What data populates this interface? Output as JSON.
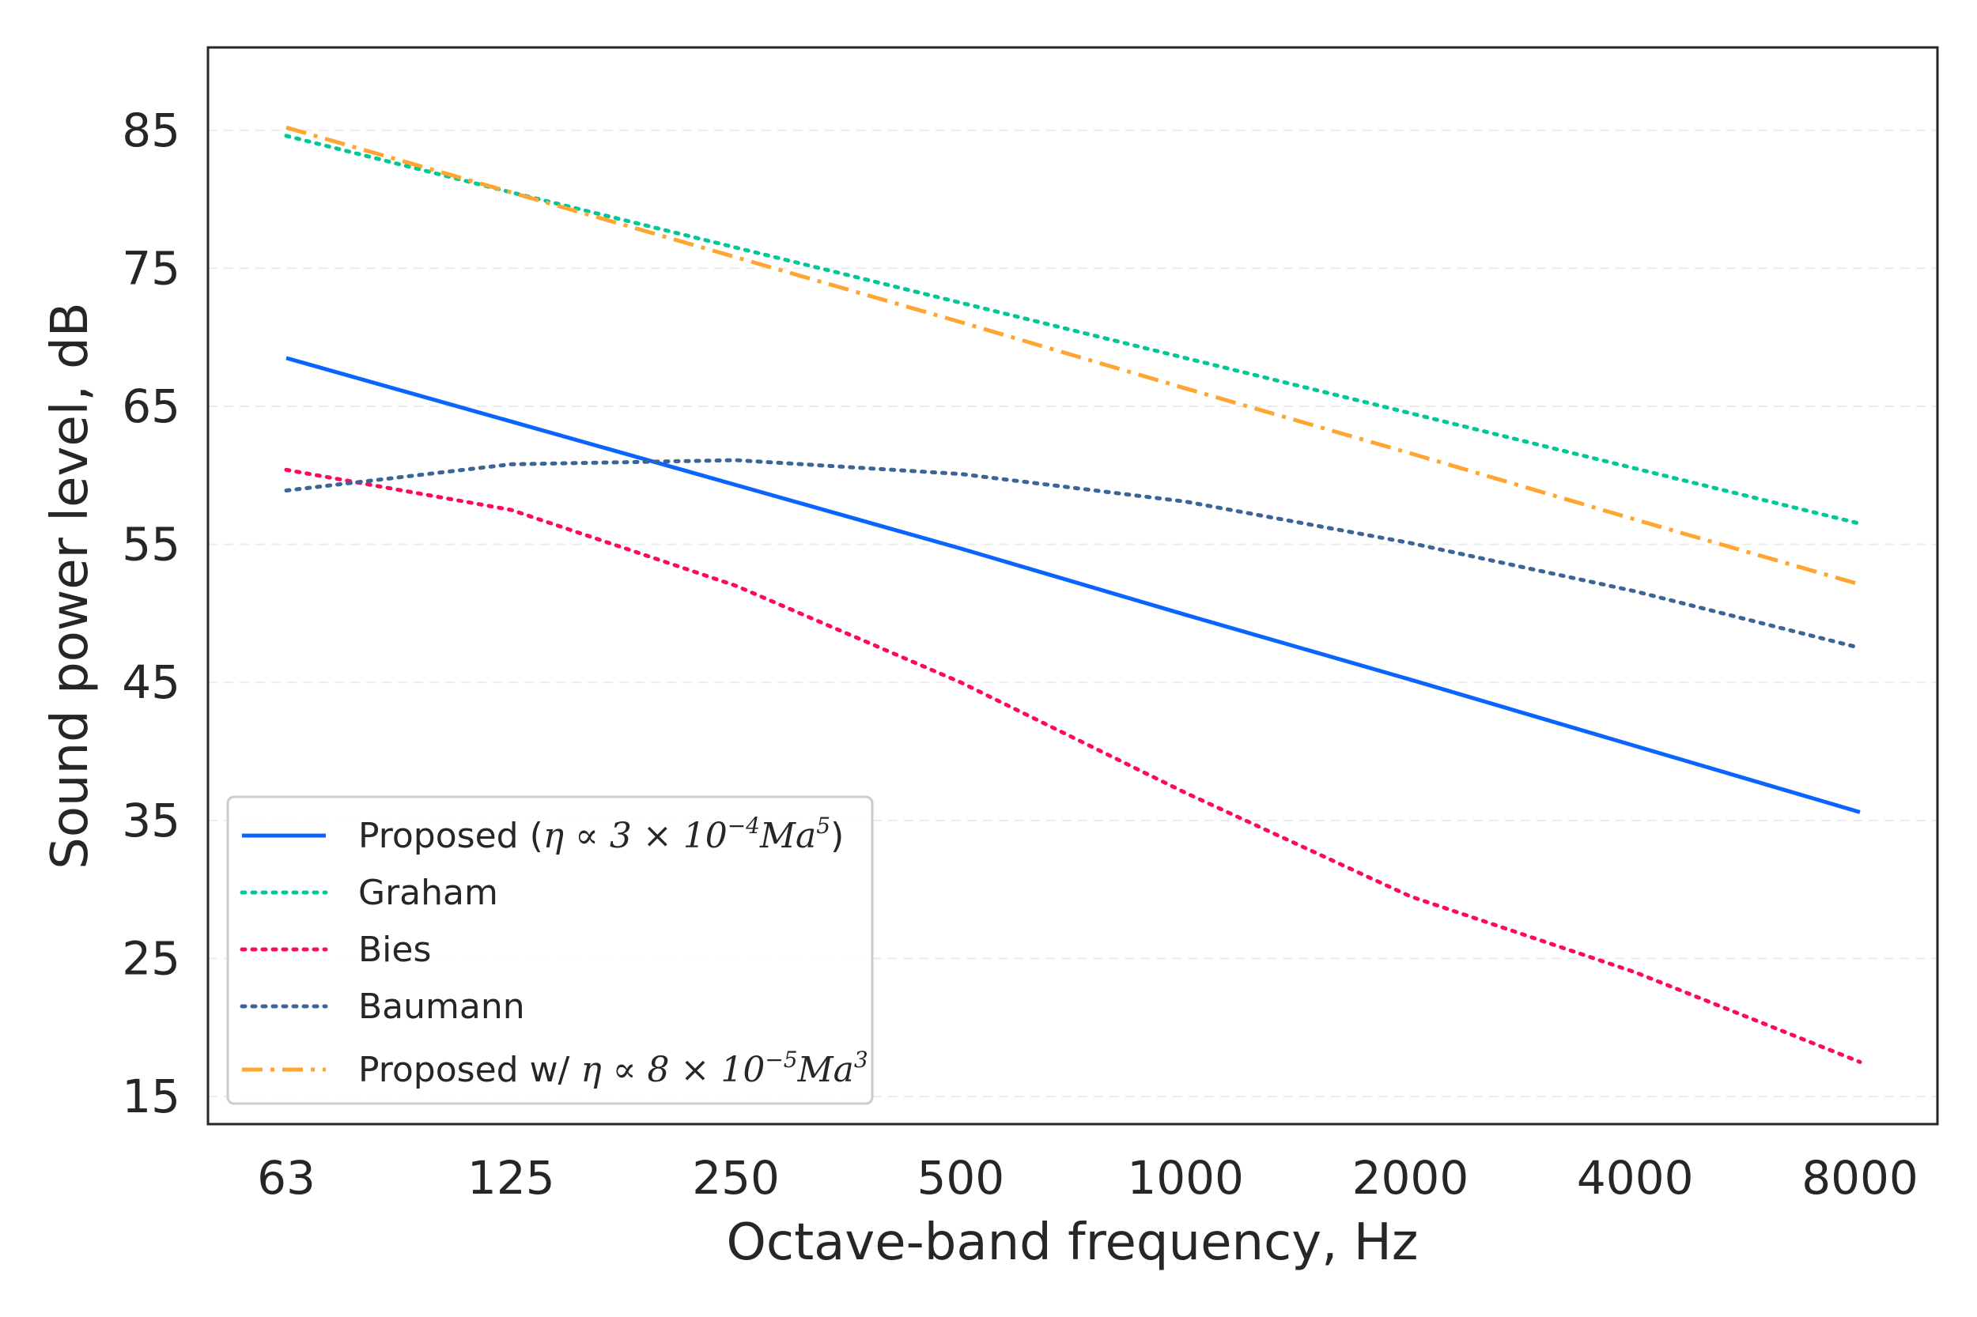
{
  "chart_data": {
    "type": "line",
    "title": "",
    "xlabel": "Octave-band frequency, Hz",
    "ylabel": "Sound power level, dB",
    "categories": [
      "63",
      "125",
      "250",
      "500",
      "1000",
      "2000",
      "4000",
      "8000"
    ],
    "yticks": [
      "15",
      "25",
      "35",
      "45",
      "55",
      "65",
      "75",
      "85"
    ],
    "ylim": [
      13,
      91
    ],
    "grid": "horizontal dashed",
    "legend_position": "lower-left",
    "series": [
      {
        "name": "Proposed",
        "legend_parts": {
          "prefix": "Proposed (",
          "eta": "η",
          "prop": " ∝ 3 × 10",
          "exp": "−4",
          "ma": "Ma",
          "maexp": "5",
          "suffix": ")"
        },
        "color": "#0a64ff",
        "style": "solid",
        "values": [
          68.5,
          63.9,
          59.3,
          54.7,
          49.9,
          45.2,
          40.4,
          35.6
        ]
      },
      {
        "name": "Graham",
        "color": "#00c896",
        "style": "dotted",
        "values": [
          84.6,
          80.5,
          76.5,
          72.5,
          68.5,
          64.5,
          60.5,
          56.5
        ]
      },
      {
        "name": "Bies",
        "color": "#ff0a5a",
        "style": "dotted",
        "values": [
          60.4,
          57.5,
          52.0,
          45.0,
          37.0,
          29.5,
          24.0,
          17.5
        ]
      },
      {
        "name": "Baumann",
        "color": "#3c6496",
        "style": "dotted",
        "values": [
          58.9,
          60.8,
          61.1,
          60.1,
          58.1,
          55.1,
          51.6,
          47.5
        ]
      },
      {
        "name": "Proposed w/",
        "legend_parts": {
          "prefix": "Proposed w/ ",
          "eta": "η",
          "prop": " ∝ 8 × 10",
          "exp": "−5",
          "ma": "Ma",
          "maexp": "3",
          "suffix": ""
        },
        "color": "#ffa532",
        "style": "dashdot",
        "values": [
          85.2,
          80.5,
          75.8,
          71.1,
          66.3,
          61.6,
          56.8,
          52.1
        ]
      }
    ]
  }
}
